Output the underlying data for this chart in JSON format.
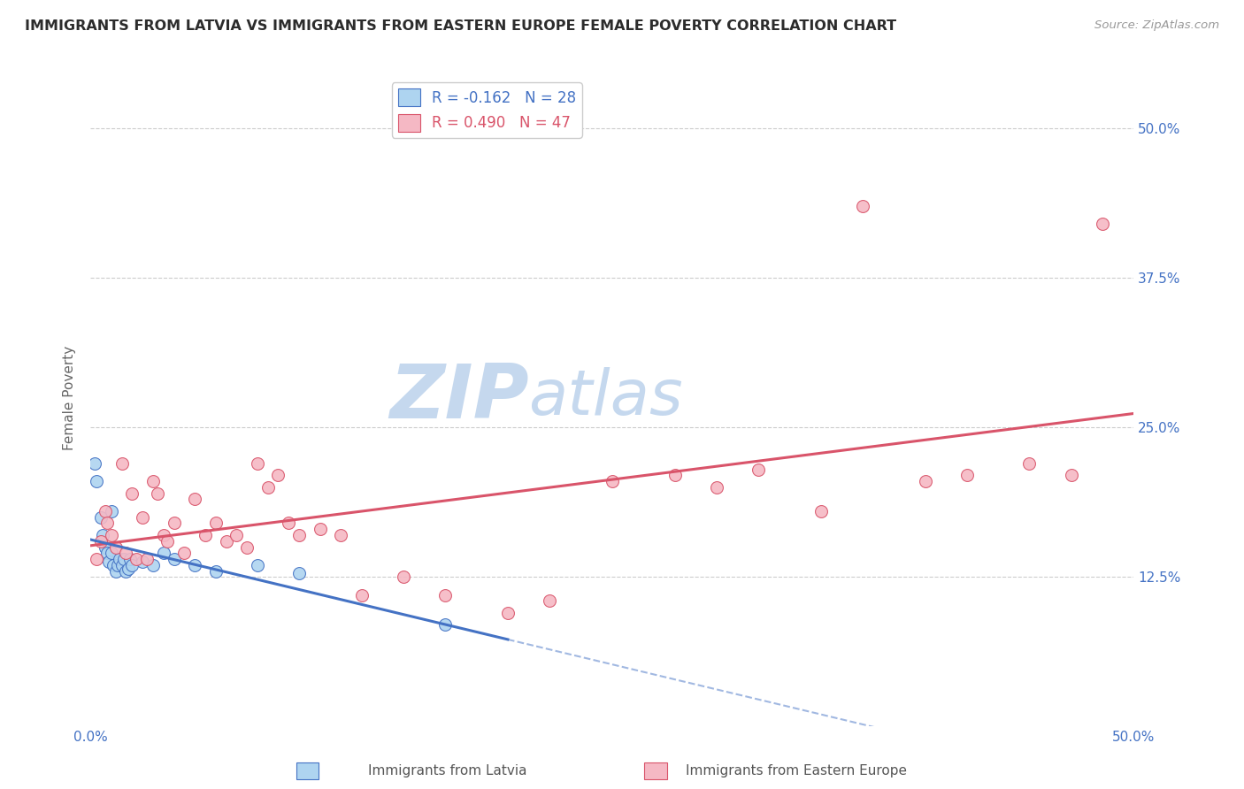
{
  "title": "IMMIGRANTS FROM LATVIA VS IMMIGRANTS FROM EASTERN EUROPE FEMALE POVERTY CORRELATION CHART",
  "source": "Source: ZipAtlas.com",
  "ylabel": "Female Poverty",
  "xlim": [
    0,
    50
  ],
  "ylim": [
    0,
    55
  ],
  "legend_r_latvia": "R = -0.162",
  "legend_n_latvia": "N = 28",
  "legend_r_eastern": "R = 0.490",
  "legend_n_eastern": "N = 47",
  "color_latvia": "#aed4f0",
  "color_eastern": "#f5b8c4",
  "line_color_latvia": "#4472c4",
  "line_color_eastern": "#d9546a",
  "watermark_zip": "ZIP",
  "watermark_atlas": "atlas",
  "legend_box_color_latvia": "#aed4f0",
  "legend_box_color_eastern": "#f5b8c4",
  "latvia_points": [
    [
      0.2,
      22.0
    ],
    [
      0.3,
      20.5
    ],
    [
      0.5,
      17.5
    ],
    [
      0.6,
      16.0
    ],
    [
      0.7,
      15.0
    ],
    [
      0.8,
      14.5
    ],
    [
      0.9,
      13.8
    ],
    [
      1.0,
      18.0
    ],
    [
      1.0,
      14.5
    ],
    [
      1.1,
      13.5
    ],
    [
      1.2,
      13.0
    ],
    [
      1.3,
      13.5
    ],
    [
      1.4,
      14.0
    ],
    [
      1.5,
      13.5
    ],
    [
      1.6,
      14.0
    ],
    [
      1.7,
      13.0
    ],
    [
      1.8,
      13.2
    ],
    [
      1.9,
      14.0
    ],
    [
      2.0,
      13.5
    ],
    [
      2.5,
      13.8
    ],
    [
      3.0,
      13.5
    ],
    [
      3.5,
      14.5
    ],
    [
      4.0,
      14.0
    ],
    [
      5.0,
      13.5
    ],
    [
      6.0,
      13.0
    ],
    [
      8.0,
      13.5
    ],
    [
      10.0,
      12.8
    ],
    [
      17.0,
      8.5
    ]
  ],
  "eastern_points": [
    [
      0.3,
      14.0
    ],
    [
      0.5,
      15.5
    ],
    [
      0.7,
      18.0
    ],
    [
      0.8,
      17.0
    ],
    [
      1.0,
      16.0
    ],
    [
      1.2,
      15.0
    ],
    [
      1.5,
      22.0
    ],
    [
      1.7,
      14.5
    ],
    [
      2.0,
      19.5
    ],
    [
      2.2,
      14.0
    ],
    [
      2.5,
      17.5
    ],
    [
      2.7,
      14.0
    ],
    [
      3.0,
      20.5
    ],
    [
      3.2,
      19.5
    ],
    [
      3.5,
      16.0
    ],
    [
      3.7,
      15.5
    ],
    [
      4.0,
      17.0
    ],
    [
      4.5,
      14.5
    ],
    [
      5.0,
      19.0
    ],
    [
      5.5,
      16.0
    ],
    [
      6.0,
      17.0
    ],
    [
      6.5,
      15.5
    ],
    [
      7.0,
      16.0
    ],
    [
      7.5,
      15.0
    ],
    [
      8.0,
      22.0
    ],
    [
      8.5,
      20.0
    ],
    [
      9.0,
      21.0
    ],
    [
      9.5,
      17.0
    ],
    [
      10.0,
      16.0
    ],
    [
      11.0,
      16.5
    ],
    [
      12.0,
      16.0
    ],
    [
      13.0,
      11.0
    ],
    [
      15.0,
      12.5
    ],
    [
      17.0,
      11.0
    ],
    [
      20.0,
      9.5
    ],
    [
      22.0,
      10.5
    ],
    [
      25.0,
      20.5
    ],
    [
      28.0,
      21.0
    ],
    [
      30.0,
      20.0
    ],
    [
      32.0,
      21.5
    ],
    [
      35.0,
      18.0
    ],
    [
      37.0,
      43.5
    ],
    [
      40.0,
      20.5
    ],
    [
      42.0,
      21.0
    ],
    [
      45.0,
      22.0
    ],
    [
      47.0,
      21.0
    ],
    [
      48.5,
      42.0
    ]
  ],
  "marker_size": 100,
  "background_color": "#ffffff",
  "grid_color": "#cccccc",
  "title_color": "#2c2c2c",
  "watermark_color_zip": "#c5d8ee",
  "watermark_color_atlas": "#c5d8ee",
  "axis_label_color": "#4472c4",
  "latvia_line_end_x": 20.0
}
